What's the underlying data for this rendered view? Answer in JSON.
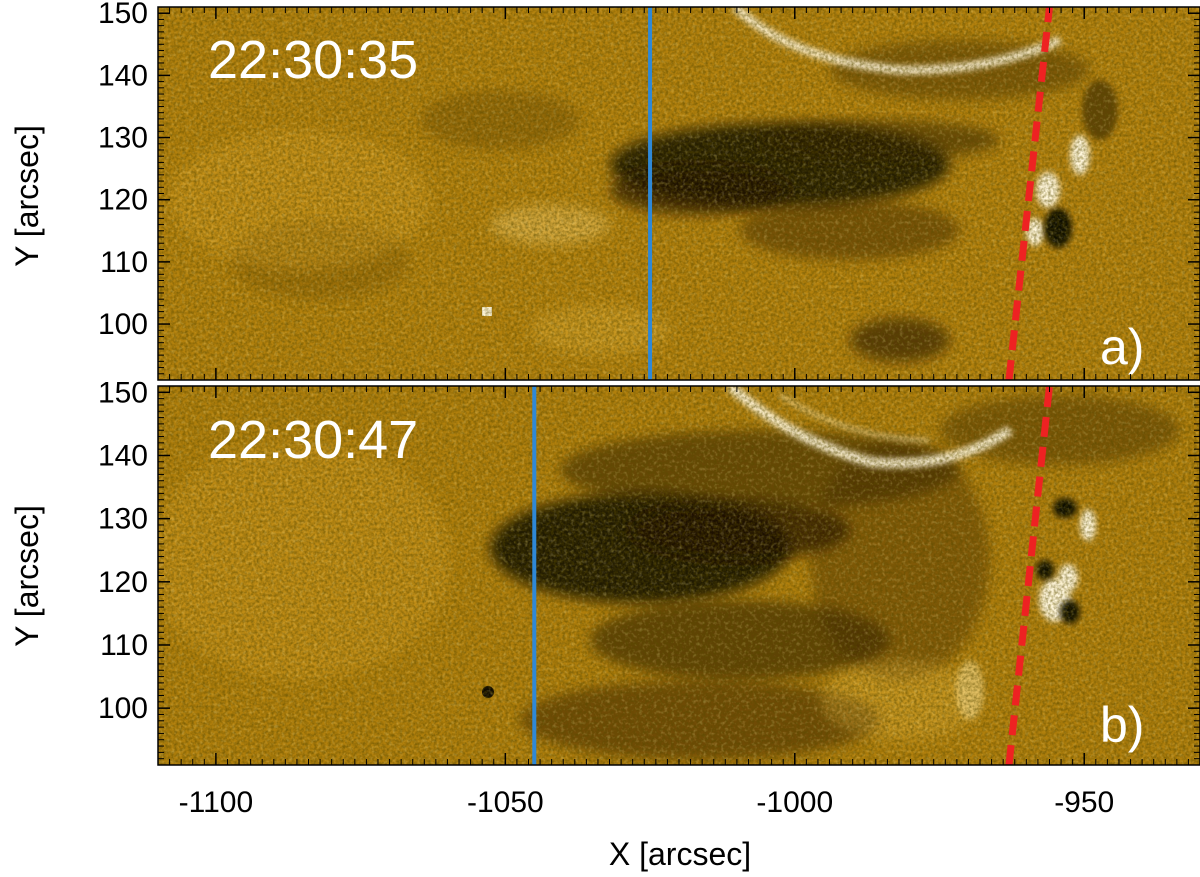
{
  "figure": {
    "x_axis_title": "X [arcsec]",
    "y_axis_title": "Y [arcsec]",
    "x_ticks": [
      -1100,
      -1050,
      -1000,
      -950
    ],
    "y_ticks": [
      100,
      110,
      120,
      130,
      140,
      150
    ],
    "x_range": [
      -1110,
      -930
    ],
    "y_range": [
      91,
      151
    ],
    "colormap": "gold (AIA 171)",
    "colors": {
      "background_base": "#a8780a",
      "dark_feature": "#0d0800",
      "bright_feature": "#fff6dc",
      "vertical_line": "#2f88d6",
      "dashed_line": "#ee2222"
    },
    "panels": [
      {
        "time_label": "22:30:35",
        "panel_label": "a)",
        "vertical_line_x": -1025,
        "dashed_line": {
          "x_bottom": -963,
          "x_top": -956
        }
      },
      {
        "time_label": "22:30:47",
        "panel_label": "b)",
        "vertical_line_x": -1045,
        "dashed_line": {
          "x_bottom": -963,
          "x_top": -956
        }
      }
    ]
  }
}
